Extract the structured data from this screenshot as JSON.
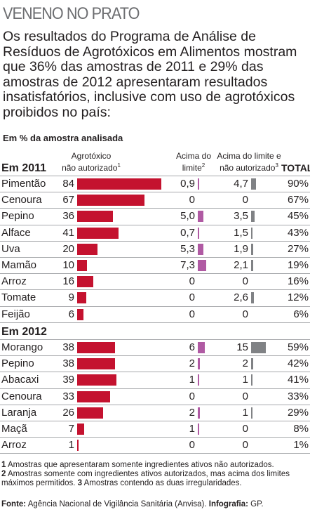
{
  "title": "VENENO NO PRATO",
  "intro": "Os resultados do Programa de Análise de Resíduos de Agrotóxicos em Alimentos mostram que 36% das amostras de 2011 e 29% das amostras de 2012 apresentaram resultados insatisfatórios, inclusive com uso de agrotóxicos proibidos no país:",
  "subhead": "Em % da amostra analisada",
  "columns": {
    "c1_line1": "Agrotóxico",
    "c1_line2": "não autorizado",
    "c1_sup": "1",
    "c2_line1": "Acima do",
    "c2_line2": "limite",
    "c2_sup": "2",
    "c3_line1": "Acima do limite e",
    "c3_line2": "não autorizado",
    "c3_sup": "3",
    "total": "TOTAL"
  },
  "colors": {
    "unauthorized": "#c4122f",
    "above_limit": "#b05aa3",
    "both": "#808285"
  },
  "chart_data": {
    "type": "bar",
    "groups": [
      {
        "year": "Em 2011",
        "rows": [
          {
            "name": "Pimentão",
            "unauthorized": 84,
            "unauthorized_label": "84",
            "above_limit": 0.9,
            "above_limit_label": "0,9",
            "both": 4.7,
            "both_label": "4,7",
            "total": "90%"
          },
          {
            "name": "Cenoura",
            "unauthorized": 67,
            "unauthorized_label": "67",
            "above_limit": 0,
            "above_limit_label": "0",
            "both": 0,
            "both_label": "0",
            "total": "67%"
          },
          {
            "name": "Pepino",
            "unauthorized": 36,
            "unauthorized_label": "36",
            "above_limit": 5.0,
            "above_limit_label": "5,0",
            "both": 3.5,
            "both_label": "3,5",
            "total": "45%"
          },
          {
            "name": "Alface",
            "unauthorized": 41,
            "unauthorized_label": "41",
            "above_limit": 0.7,
            "above_limit_label": "0,7",
            "both": 1.5,
            "both_label": "1,5",
            "total": "43%"
          },
          {
            "name": "Uva",
            "unauthorized": 20,
            "unauthorized_label": "20",
            "above_limit": 5.3,
            "above_limit_label": "5,3",
            "both": 1.9,
            "both_label": "1,9",
            "total": "27%"
          },
          {
            "name": "Mamão",
            "unauthorized": 10,
            "unauthorized_label": "10",
            "above_limit": 7.3,
            "above_limit_label": "7,3",
            "both": 2.1,
            "both_label": "2,1",
            "total": "19%"
          },
          {
            "name": "Arroz",
            "unauthorized": 16,
            "unauthorized_label": "16",
            "above_limit": 0,
            "above_limit_label": "0",
            "both": 0,
            "both_label": "0",
            "total": "16%"
          },
          {
            "name": "Tomate",
            "unauthorized": 9,
            "unauthorized_label": "9",
            "above_limit": 0,
            "above_limit_label": "0",
            "both": 2.6,
            "both_label": "2,6",
            "total": "12%"
          },
          {
            "name": "Feijão",
            "unauthorized": 6,
            "unauthorized_label": "6",
            "above_limit": 0,
            "above_limit_label": "0",
            "both": 0,
            "both_label": "0",
            "total": "6%"
          }
        ]
      },
      {
        "year": "Em 2012",
        "rows": [
          {
            "name": "Morango",
            "unauthorized": 38,
            "unauthorized_label": "38",
            "above_limit": 6,
            "above_limit_label": "6",
            "both": 15,
            "both_label": "15",
            "total": "59%"
          },
          {
            "name": "Pepino",
            "unauthorized": 38,
            "unauthorized_label": "38",
            "above_limit": 2,
            "above_limit_label": "2",
            "both": 2,
            "both_label": "2",
            "total": "42%"
          },
          {
            "name": "Abacaxi",
            "unauthorized": 39,
            "unauthorized_label": "39",
            "above_limit": 1,
            "above_limit_label": "1",
            "both": 1,
            "both_label": "1",
            "total": "41%"
          },
          {
            "name": "Cenoura",
            "unauthorized": 33,
            "unauthorized_label": "33",
            "above_limit": 0,
            "above_limit_label": "0",
            "both": 0,
            "both_label": "0",
            "total": "33%"
          },
          {
            "name": "Laranja",
            "unauthorized": 26,
            "unauthorized_label": "26",
            "above_limit": 2,
            "above_limit_label": "2",
            "both": 1,
            "both_label": "1",
            "total": "29%"
          },
          {
            "name": "Maçã",
            "unauthorized": 7,
            "unauthorized_label": "7",
            "above_limit": 1,
            "above_limit_label": "1",
            "both": 0,
            "both_label": "0",
            "total": "8%"
          },
          {
            "name": "Arroz",
            "unauthorized": 1,
            "unauthorized_label": "1",
            "above_limit": 0,
            "above_limit_label": "0",
            "both": 0,
            "both_label": "0",
            "total": "1%"
          }
        ]
      }
    ]
  },
  "notes": {
    "n1_num": "1",
    "n1_text": " Amostras que apresentaram somente ingredientes ativos não autorizados.",
    "n2_num": "2",
    "n2_text": " Amostras somente com ingredientes ativos autorizados, mas acima dos limites máximos permitidos. ",
    "n3_num": "3",
    "n3_text": " Amostras contendo as duas irregularidades."
  },
  "source": {
    "label": "Fonte:",
    "text": " Agência Nacional de Vigilância Sanitária (Anvisa). ",
    "credit_label": "Infografia:",
    "credit_text": " GP."
  }
}
